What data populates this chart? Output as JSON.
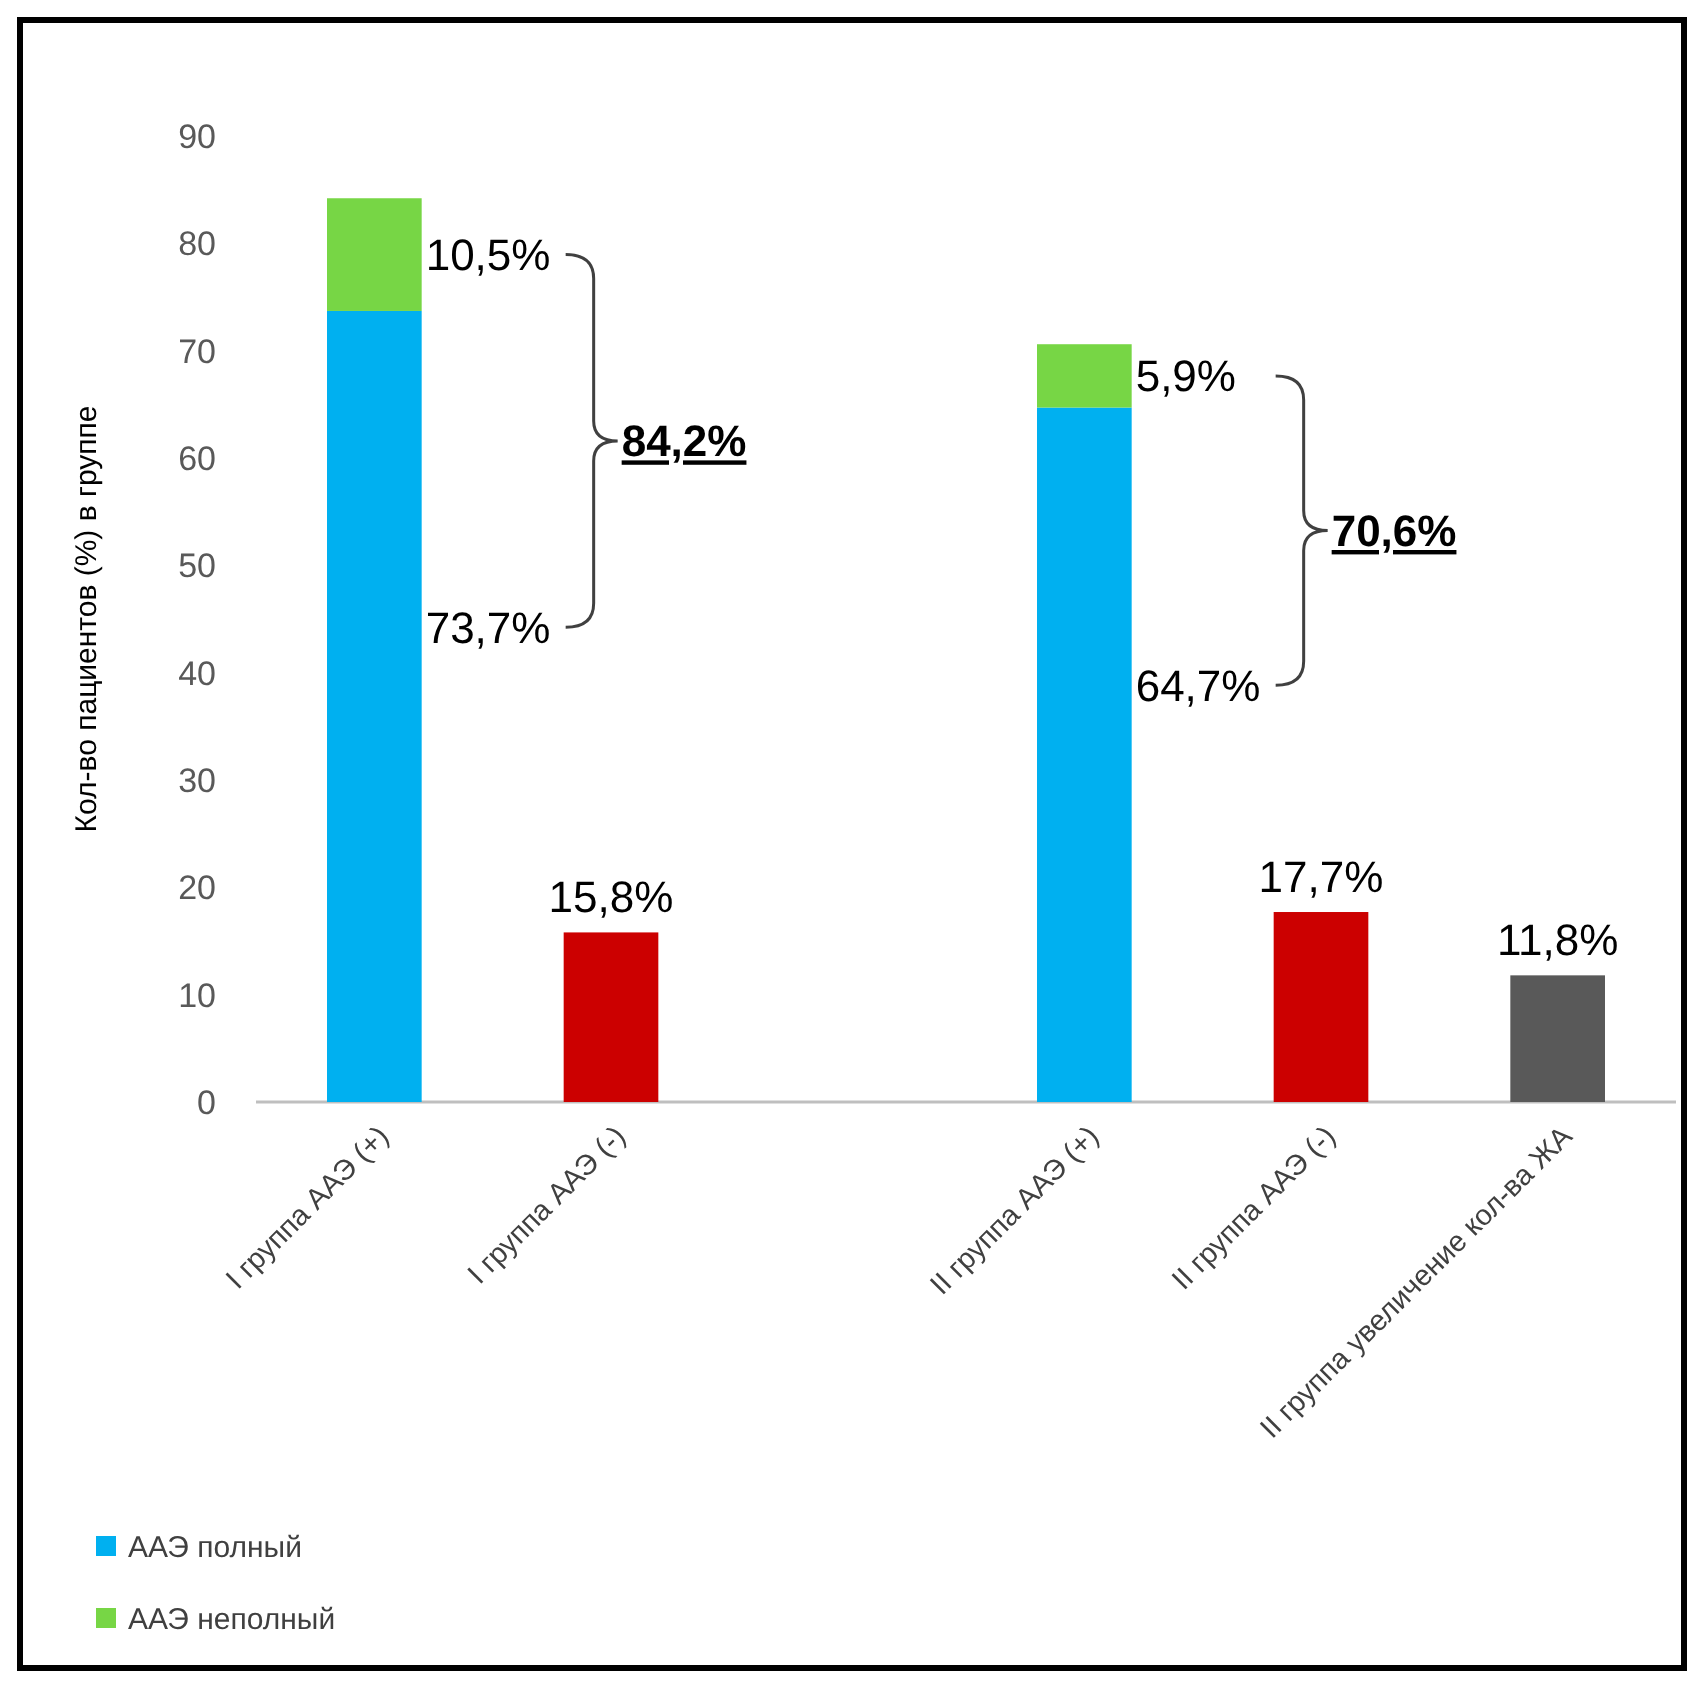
{
  "chart_data": {
    "type": "bar",
    "stacked": true,
    "ylabel": "Кол-во пациентов (%) в группе",
    "categories": [
      "I группа ААЭ (+)",
      "I группа ААЭ (-)",
      null,
      "II группа ААЭ (+)",
      "II группа ААЭ (-)",
      "II группа увеличение кол-ва ЖА"
    ],
    "series": [
      {
        "name": "ААЭ полный",
        "color": "#00b0f0",
        "values": [
          73.7,
          null,
          null,
          64.7,
          null,
          null
        ]
      },
      {
        "name": "ААЭ неполный",
        "color": "#77d645",
        "values": [
          10.5,
          null,
          null,
          5.9,
          null,
          null
        ]
      },
      {
        "colors": [
          null,
          "#cc0000",
          null,
          null,
          "#cc0000",
          "#595959"
        ],
        "values": [
          null,
          15.8,
          null,
          null,
          17.7,
          11.8
        ],
        "value_labels": [
          null,
          "15,8%",
          null,
          null,
          "17,7%",
          "11,8%"
        ]
      }
    ],
    "annotations": [
      "10,5%",
      "84,2%",
      "73,7%",
      "5,9%",
      "70,6%",
      "64,7%"
    ],
    "ylim": [
      0,
      90
    ],
    "yticks": [
      0,
      10,
      20,
      30,
      40,
      50,
      60,
      70,
      80,
      90
    ],
    "legend": "bottom left"
  }
}
